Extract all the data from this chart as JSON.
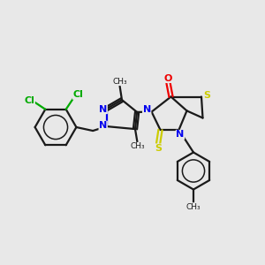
{
  "bg_color": "#e8e8e8",
  "bond_color": "#1a1a1a",
  "N_color": "#0000ee",
  "O_color": "#ee0000",
  "S_color": "#cccc00",
  "Cl_color": "#00aa00",
  "lw": 1.6,
  "fig_w": 3.0,
  "fig_h": 3.0,
  "dpi": 100,
  "xlim": [
    0,
    10
  ],
  "ylim": [
    0,
    10
  ]
}
